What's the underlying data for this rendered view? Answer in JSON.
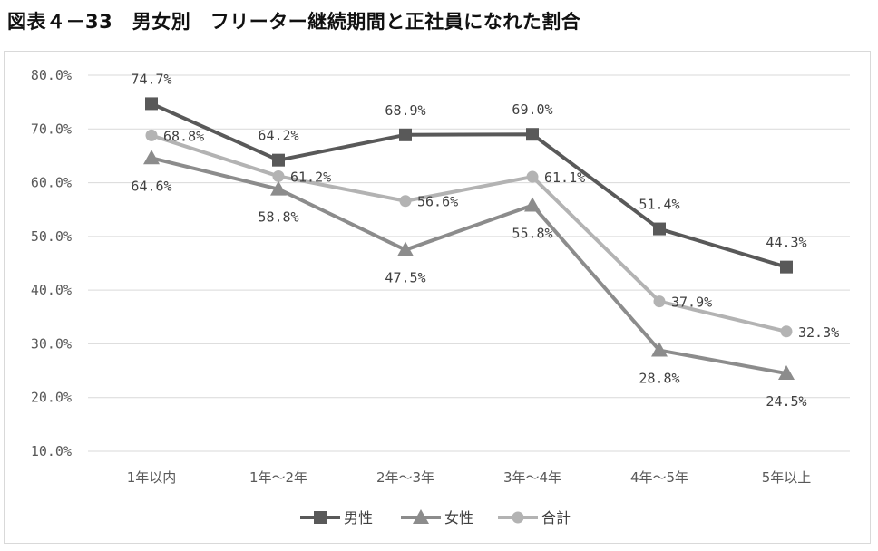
{
  "title": "図表４－33　男女別　フリーター継続期間と正社員になれた割合",
  "chart_data": {
    "type": "line",
    "categories": [
      "1年以内",
      "1年～2年",
      "2年～3年",
      "3年～4年",
      "4年～5年",
      "5年以上"
    ],
    "ylim": [
      10,
      80
    ],
    "yticks": [
      10,
      20,
      30,
      40,
      50,
      60,
      70,
      80
    ],
    "ytick_labels": [
      "10.0%",
      "20.0%",
      "30.0%",
      "40.0%",
      "50.0%",
      "60.0%",
      "70.0%",
      "80.0%"
    ],
    "grid": true,
    "legend_position": "bottom",
    "series": [
      {
        "name": "男性",
        "marker": "square",
        "color": "#595959",
        "values": [
          74.7,
          64.2,
          68.9,
          69.0,
          51.4,
          44.3
        ],
        "labels": [
          "74.7%",
          "64.2%",
          "68.9%",
          "69.0%",
          "51.4%",
          "44.3%"
        ]
      },
      {
        "name": "女性",
        "marker": "triangle",
        "color": "#8c8c8c",
        "values": [
          64.6,
          58.8,
          47.5,
          55.8,
          28.8,
          24.5
        ],
        "labels": [
          "64.6%",
          "58.8%",
          "47.5%",
          "55.8%",
          "28.8%",
          "24.5%"
        ]
      },
      {
        "name": "合計",
        "marker": "circle",
        "color": "#b3b3b3",
        "values": [
          68.8,
          61.2,
          56.6,
          61.1,
          37.9,
          32.3
        ],
        "labels": [
          "68.8%",
          "61.2%",
          "56.6%",
          "61.1%",
          "37.9%",
          "32.3%"
        ]
      }
    ]
  }
}
